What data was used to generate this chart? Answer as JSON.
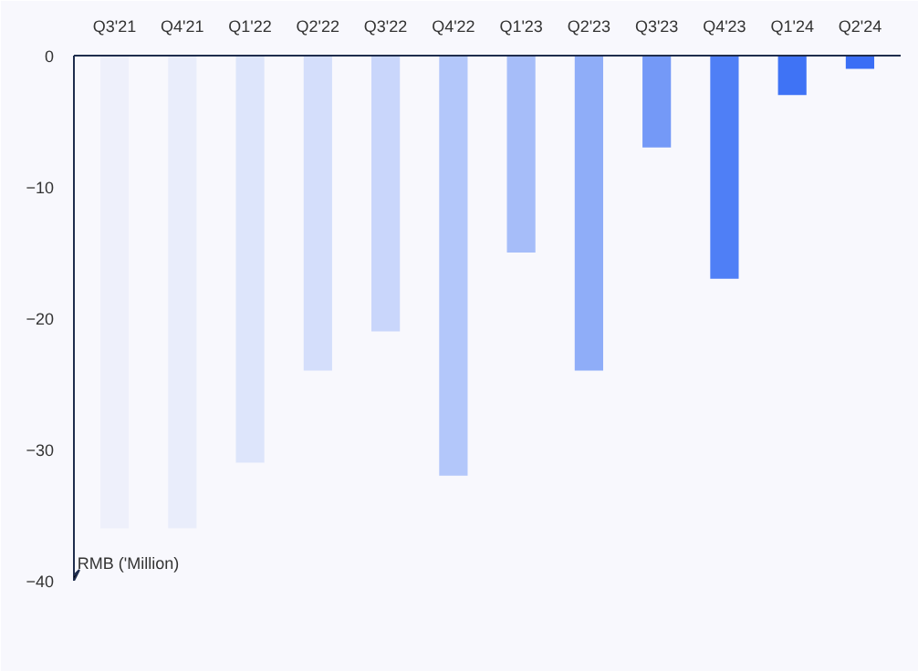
{
  "chart_data": {
    "type": "bar",
    "ylabel": "RMB ('Million)",
    "categories": [
      "Q3'21",
      "Q4'21",
      "Q1'22",
      "Q2'22",
      "Q3'22",
      "Q4'22",
      "Q1'23",
      "Q2'23",
      "Q3'23",
      "Q4'23",
      "Q1'24",
      "Q2'24"
    ],
    "values": [
      -36,
      -36,
      -31,
      -24,
      -21,
      -32,
      -15,
      -24,
      -7,
      -17,
      -3,
      -1
    ],
    "colors": [
      "#eef0fb",
      "#e9edfb",
      "#dde5fb",
      "#d4defb",
      "#c9d6fb",
      "#b3c7fa",
      "#a6bdf9",
      "#8fadf8",
      "#7499f7",
      "#4f7ff6",
      "#3f73f5",
      "#3a6ef5"
    ],
    "ylim": [
      -40,
      0
    ],
    "yticks": [
      -40,
      -30,
      -20,
      -10,
      0
    ],
    "grid": false
  }
}
